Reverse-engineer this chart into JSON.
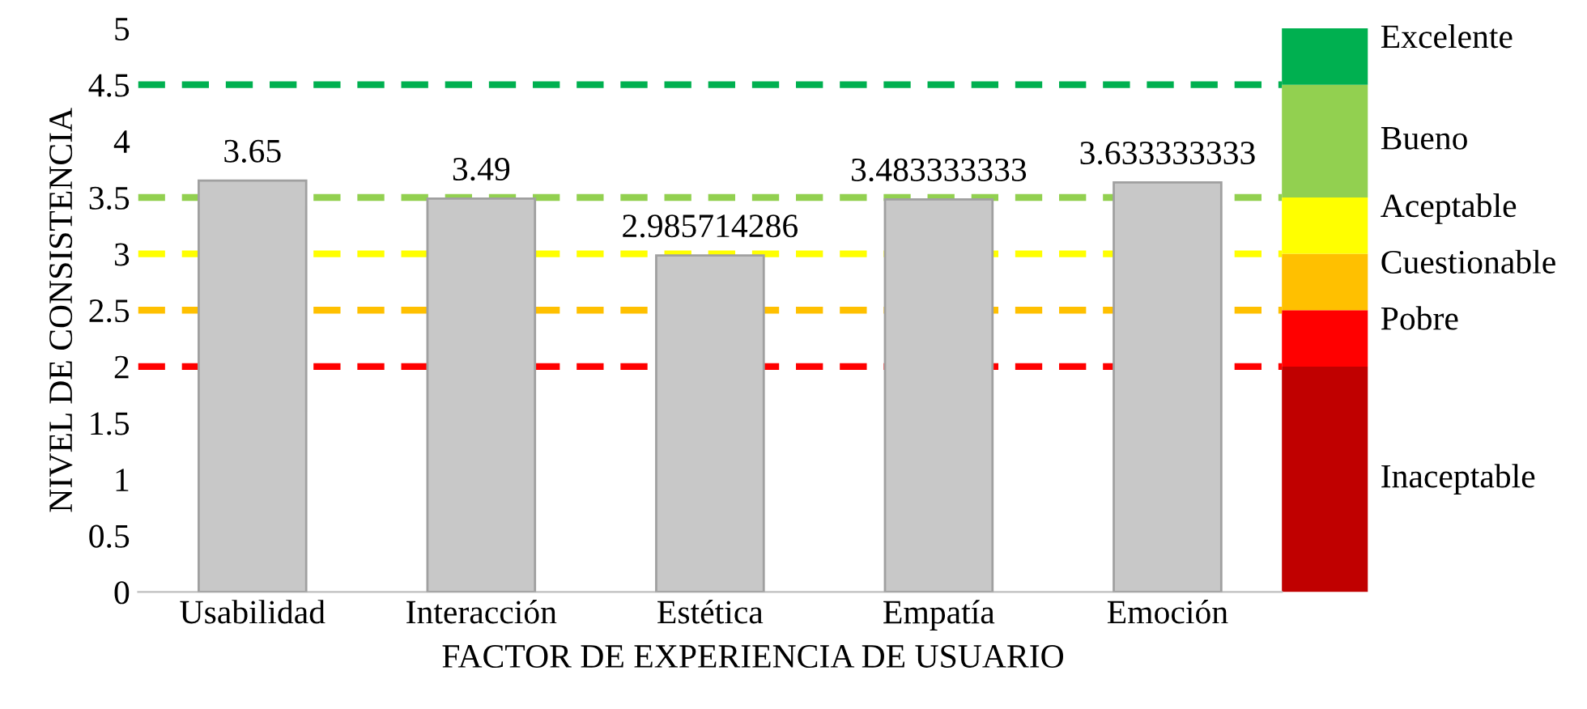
{
  "chart_data": {
    "type": "bar",
    "xlabel": "FACTOR DE EXPERIENCIA DE USUARIO",
    "ylabel": "NIVEL DE CONSISTENCIA",
    "categories": [
      "Usabilidad",
      "Interacción",
      "Estética",
      "Empatía",
      "Emoción"
    ],
    "values": [
      3.65,
      3.49,
      2.985714286,
      3.483333333,
      3.633333333
    ],
    "value_labels": [
      "3.65",
      "3.49",
      "2.985714286",
      "3.483333333",
      "3.633333333"
    ],
    "color": "#c8c8c8",
    "ylim": [
      0,
      5
    ],
    "yticks": [
      0,
      0.5,
      1,
      1.5,
      2,
      2.5,
      3,
      3.5,
      4,
      4.5,
      5
    ],
    "ref_lines": [
      {
        "axis": "y",
        "value": 4.5,
        "color": "#00b050",
        "line_style": "dashed"
      },
      {
        "axis": "y",
        "value": 3.5,
        "color": "#92d050",
        "line_style": "dashed"
      },
      {
        "axis": "y",
        "value": 3,
        "color": "#ffff00",
        "line_style": "dashed"
      },
      {
        "axis": "y",
        "value": 2.5,
        "color": "#ffc000",
        "line_style": "dashed"
      },
      {
        "axis": "y",
        "value": 2,
        "color": "#ff0000",
        "line_style": "dashed"
      }
    ],
    "annotations": [
      "Inaceptable",
      "Pobre",
      "Cuestionable",
      "Aceptable",
      "Bueno",
      "Excelente"
    ],
    "grid": false,
    "legend": false
  }
}
